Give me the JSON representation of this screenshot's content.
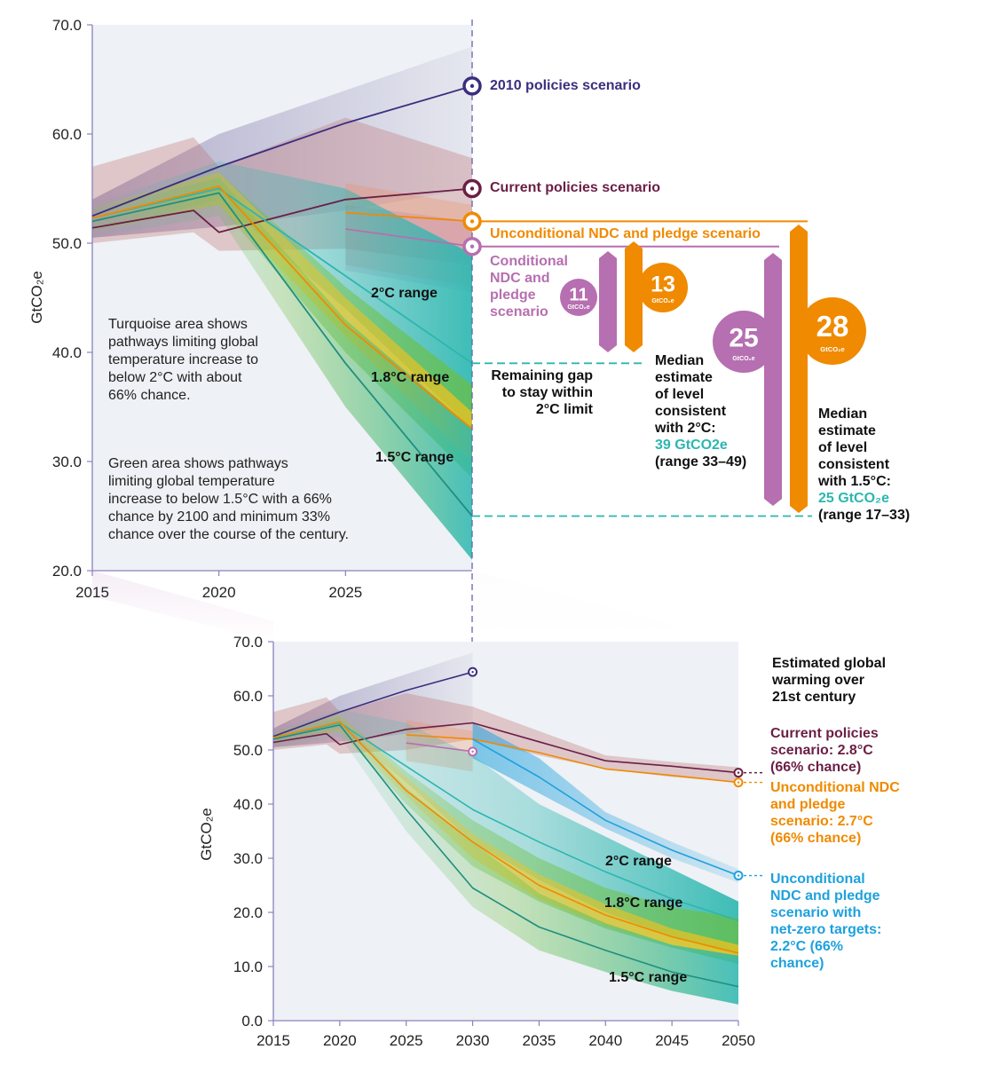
{
  "colors": {
    "c2010": "#3b2e7e",
    "current": "#6b1f45",
    "uncond": "#f08a00",
    "cond": "#b66fb0",
    "turq": "#2bb7b0",
    "green": "#6cbf3c",
    "yellow": "#f3c21d",
    "netzero": "#1ea1dd",
    "ylabel": "#222222"
  },
  "chart_data": [
    {
      "type": "area",
      "ylabel": "GtCO₂e",
      "ylim": [
        20,
        70
      ],
      "yticks": [
        "70.0",
        "60.0",
        "50.0",
        "40.0",
        "30.0",
        "20.0"
      ],
      "xticks": [
        "2015",
        "2020",
        "2025"
      ],
      "xlim": [
        2015,
        2030
      ],
      "series": [
        {
          "name": "2010 policies scenario",
          "x": [
            2015,
            2020,
            2025,
            2030
          ],
          "y": [
            52.5,
            57,
            61,
            64.4
          ]
        },
        {
          "name": "Current policies scenario",
          "x": [
            2015,
            2019,
            2020,
            2025,
            2030
          ],
          "y": [
            51.4,
            53,
            51,
            54,
            55
          ]
        },
        {
          "name": "Unconditional NDC and pledge scenario",
          "x": [
            2025,
            2030
          ],
          "y": [
            52.8,
            52
          ]
        },
        {
          "name": "Conditional NDC and pledge scenario",
          "x": [
            2025,
            2030
          ],
          "y": [
            51.3,
            49.7
          ]
        },
        {
          "name": "2°C range",
          "x": [
            2015,
            2020,
            2025,
            2030
          ],
          "y": [
            52.3,
            55,
            47,
            39
          ]
        },
        {
          "name": "1.8°C range",
          "x": [
            2015,
            2020,
            2025,
            2030
          ],
          "y": [
            52.3,
            55.2,
            42.5,
            33
          ]
        },
        {
          "name": "1.5°C range",
          "x": [
            2015,
            2020,
            2025,
            2030
          ],
          "y": [
            52,
            54.6,
            39,
            25
          ]
        }
      ],
      "labels": {
        "s2010": "2010 policies scenario",
        "current": "Current policies scenario",
        "uncond": "Unconditional NDC and pledge scenario",
        "cond": [
          "Conditional",
          "NDC and",
          "pledge",
          "scenario"
        ],
        "r20": "2°C range",
        "r18": "1.8°C range",
        "r15": "1.5°C range"
      },
      "notes": {
        "turq": [
          "Turquoise area shows",
          "pathways limiting global",
          "temperature increase to",
          "below 2°C with about",
          "66% chance."
        ],
        "green": [
          "Green area shows pathways",
          "limiting global temperature",
          "increase to below 1.5°C with a 66%",
          "chance by 2100 and minimum 33%",
          "chance over the course of the century."
        ]
      },
      "gap": {
        "title": [
          "Remaining gap",
          "to stay within",
          "2°C limit"
        ],
        "b11": "11",
        "b13": "13",
        "b25": "25",
        "b28": "28",
        "unit": "GtCO₂e",
        "median2": [
          "Median",
          "estimate",
          "of level",
          "consistent",
          "with 2°C:"
        ],
        "median2_value": "39 GtCO2e",
        "median2_range": "(range 33–49)",
        "median15": [
          "Median",
          "estimate",
          "of level",
          "consistent",
          "with 1.5°C:"
        ],
        "median15_value": "25 GtCO₂e",
        "median15_range": "(range 17–33)"
      }
    },
    {
      "type": "area",
      "ylabel": "GtCO₂e",
      "ylim": [
        0,
        70
      ],
      "yticks": [
        "70.0",
        "60.0",
        "50.0",
        "40.0",
        "30.0",
        "20.0",
        "10.0",
        "0.0"
      ],
      "xticks": [
        "2015",
        "2020",
        "2025",
        "2030",
        "2035",
        "2040",
        "2045",
        "2050"
      ],
      "xlim": [
        2015,
        2050
      ],
      "series": [
        {
          "name": "2010 policies scenario",
          "x": [
            2015,
            2020,
            2025,
            2030
          ],
          "y": [
            52.5,
            57,
            61,
            64.4
          ]
        },
        {
          "name": "Current policies scenario",
          "x": [
            2015,
            2019,
            2020,
            2025,
            2030,
            2035,
            2040,
            2045,
            2050
          ],
          "y": [
            51.4,
            53,
            51,
            53.8,
            55,
            51.5,
            48,
            47,
            45.8
          ]
        },
        {
          "name": "Unconditional NDC and pledge scenario",
          "x": [
            2025,
            2030,
            2035,
            2040,
            2045,
            2050
          ],
          "y": [
            52.8,
            52,
            49.5,
            46.5,
            45.3,
            44
          ]
        },
        {
          "name": "Conditional NDC and pledge scenario",
          "x": [
            2025,
            2030
          ],
          "y": [
            51.3,
            49.7
          ]
        },
        {
          "name": "Unconditional NDC and pledge scenario with net-zero targets",
          "x": [
            2030,
            2035,
            2040,
            2045,
            2050
          ],
          "y": [
            52,
            45,
            37,
            31.5,
            26.8
          ]
        },
        {
          "name": "2°C range",
          "x": [
            2015,
            2020,
            2025,
            2030,
            2035,
            2040,
            2045,
            2050
          ],
          "y": [
            52.3,
            55,
            47,
            39,
            33,
            27.5,
            22.5,
            18.5
          ]
        },
        {
          "name": "1.8°C range",
          "x": [
            2015,
            2020,
            2025,
            2030,
            2035,
            2040,
            2045,
            2050
          ],
          "y": [
            52.3,
            55.2,
            42.5,
            33,
            25,
            19.5,
            15.5,
            12.5
          ]
        },
        {
          "name": "1.5°C range",
          "x": [
            2015,
            2020,
            2025,
            2030,
            2035,
            2040,
            2045,
            2050
          ],
          "y": [
            52,
            54.6,
            39,
            24.5,
            17.3,
            13,
            9,
            6.3
          ]
        }
      ],
      "labels": {
        "r20": "2°C range",
        "r18": "1.8°C range",
        "r15": "1.5°C range"
      },
      "legend": {
        "title": [
          "Estimated global",
          "warming over",
          "21st century"
        ],
        "current": [
          "Current policies",
          "scenario: 2.8°C",
          "(66% chance)"
        ],
        "uncond": [
          "Unconditional NDC",
          "and pledge",
          "scenario: 2.7°C",
          "(66% chance)"
        ],
        "netzero": [
          "Unconditional",
          "NDC and pledge",
          "scenario with",
          "net-zero targets:",
          "2.2°C (66%",
          "chance)"
        ]
      }
    }
  ]
}
